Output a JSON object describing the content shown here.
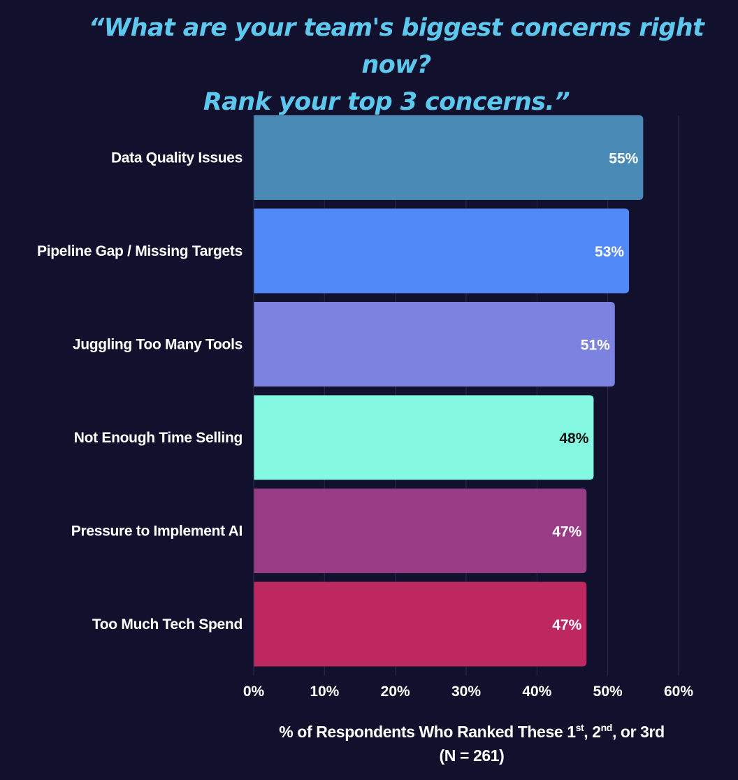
{
  "title": {
    "line1": "“What are your team's biggest concerns right now?",
    "line2": "Rank your top 3 concerns.”"
  },
  "chart_data": {
    "type": "bar",
    "orientation": "horizontal",
    "categories": [
      "Data Quality Issues",
      "Pipeline Gap / Missing Targets",
      "Juggling Too Many Tools",
      "Not Enough Time Selling",
      "Pressure to Implement AI",
      "Too Much Tech Spend"
    ],
    "values": [
      55,
      53,
      51,
      48,
      47,
      47
    ],
    "value_labels": [
      "55%",
      "53%",
      "51%",
      "48%",
      "47%",
      "47%"
    ],
    "bar_colors": [
      "#4a8ab6",
      "#5289f8",
      "#7c82df",
      "#84f8e0",
      "#983d85",
      "#bd2860"
    ],
    "label_colors": [
      "#ffffff",
      "#ffffff",
      "#ffffff",
      "#111111",
      "#ffffff",
      "#ffffff"
    ],
    "xlim": [
      0,
      60
    ],
    "xticks": [
      0,
      10,
      20,
      30,
      40,
      50,
      60
    ],
    "xtick_labels": [
      "0%",
      "10%",
      "20%",
      "30%",
      "40%",
      "50%",
      "60%"
    ],
    "grid": true,
    "xlabel": {
      "pre": "% of Respondents Who Ranked These 1",
      "sup1": "st",
      "mid1": ", 2",
      "sup2": "nd",
      "post": ", or 3rd",
      "note": "(N = 261)"
    }
  }
}
